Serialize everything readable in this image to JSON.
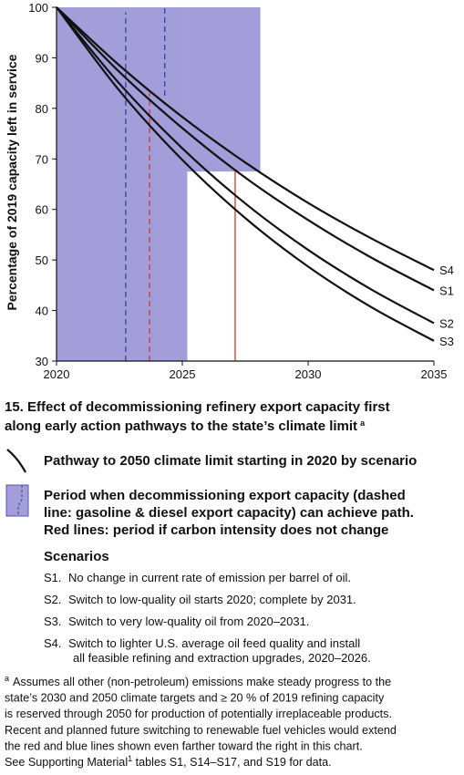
{
  "chart_data": {
    "type": "line",
    "ylabel": "Percentage of 2019 capacity left in service",
    "x": [
      2020,
      2022.5,
      2025,
      2027.5,
      2030,
      2032.5,
      2035
    ],
    "xlim": [
      2020,
      2035
    ],
    "xticks": [
      2020,
      2025,
      2030,
      2035
    ],
    "ylim": [
      30,
      100
    ],
    "yticks": [
      30,
      40,
      50,
      60,
      70,
      80,
      90,
      100
    ],
    "series": [
      {
        "name": "S4",
        "color": "#111111",
        "values": [
          100,
          88.5,
          78.3,
          69.3,
          61.3,
          54.3,
          48
        ]
      },
      {
        "name": "S1",
        "color": "#111111",
        "values": [
          100,
          87.2,
          76.1,
          66.3,
          57.9,
          50.5,
          44
        ]
      },
      {
        "name": "S2",
        "color": "#111111",
        "values": [
          100,
          84.9,
          72.1,
          61.2,
          52.0,
          44.2,
          37.5
        ]
      },
      {
        "name": "S3",
        "color": "#111111",
        "values": [
          100,
          83.5,
          69.8,
          58.3,
          48.7,
          40.7,
          34
        ]
      }
    ],
    "regions": [
      {
        "x0": 2020,
        "x1": 2025.2,
        "y0": 30,
        "y1": 100,
        "color": "#a39dd9"
      },
      {
        "x0": 2025.2,
        "x1": 2028.1,
        "y0": 67.5,
        "y1": 100,
        "color": "#a39dd9"
      }
    ],
    "markers": [
      {
        "x": 2022.75,
        "y0": 30,
        "y1": 99,
        "color": "#3a3f9e",
        "dashed": true
      },
      {
        "x": 2024.3,
        "y0": 82.5,
        "y1": 100,
        "color": "#3a3f9e",
        "dashed": true
      },
      {
        "x": 2023.7,
        "y0": 30,
        "y1": 83,
        "color": "#d23a2a",
        "dashed": true
      },
      {
        "x": 2027.1,
        "y0": 30,
        "y1": 67.5,
        "color": "#d23a2a",
        "dashed": false
      }
    ]
  },
  "caption": {
    "title_lines": [
      "15. Effect of decommissioning refinery export capacity first",
      "along early action pathways to the state’s climate limit"
    ],
    "title_note": "a",
    "legend_line": "Pathway to 2050 climate limit starting in 2020 by scenario",
    "legend_period": [
      "Period when decommissioning export capacity (dashed",
      "line: gasoline & diesel export capacity) can achieve path.",
      "Red lines: period if carbon intensity does not change"
    ],
    "scenarios_title": "Scenarios",
    "scenarios": [
      [
        "S1.",
        "No change in current rate of emission per barrel of oil."
      ],
      [
        "S2.",
        "Switch to low-quality oil starts 2020; complete by 2031."
      ],
      [
        "S3.",
        "Switch to very low-quality oil from 2020–2031."
      ],
      [
        "S4.",
        "Switch to lighter U.S. average oil feed quality and install",
        "all feasible refining and extraction upgrades, 2020–2026."
      ]
    ],
    "footnote_mark": "a",
    "footnote": [
      "Assumes all other (non-petroleum) emissions make steady progress to the",
      "state’s 2030 and 2050 climate targets and ≥ 20 % of 2019 refining capacity",
      "is reserved through 2050 for production of potentially irreplaceable products.",
      "Recent and planned future switching to renewable fuel vehicles would extend",
      "the red and blue lines shown even farther toward the right in this chart."
    ],
    "footnote_last": [
      "See Supporting Material",
      "1",
      " tables S1, S14–S17, and S19 for data."
    ]
  }
}
